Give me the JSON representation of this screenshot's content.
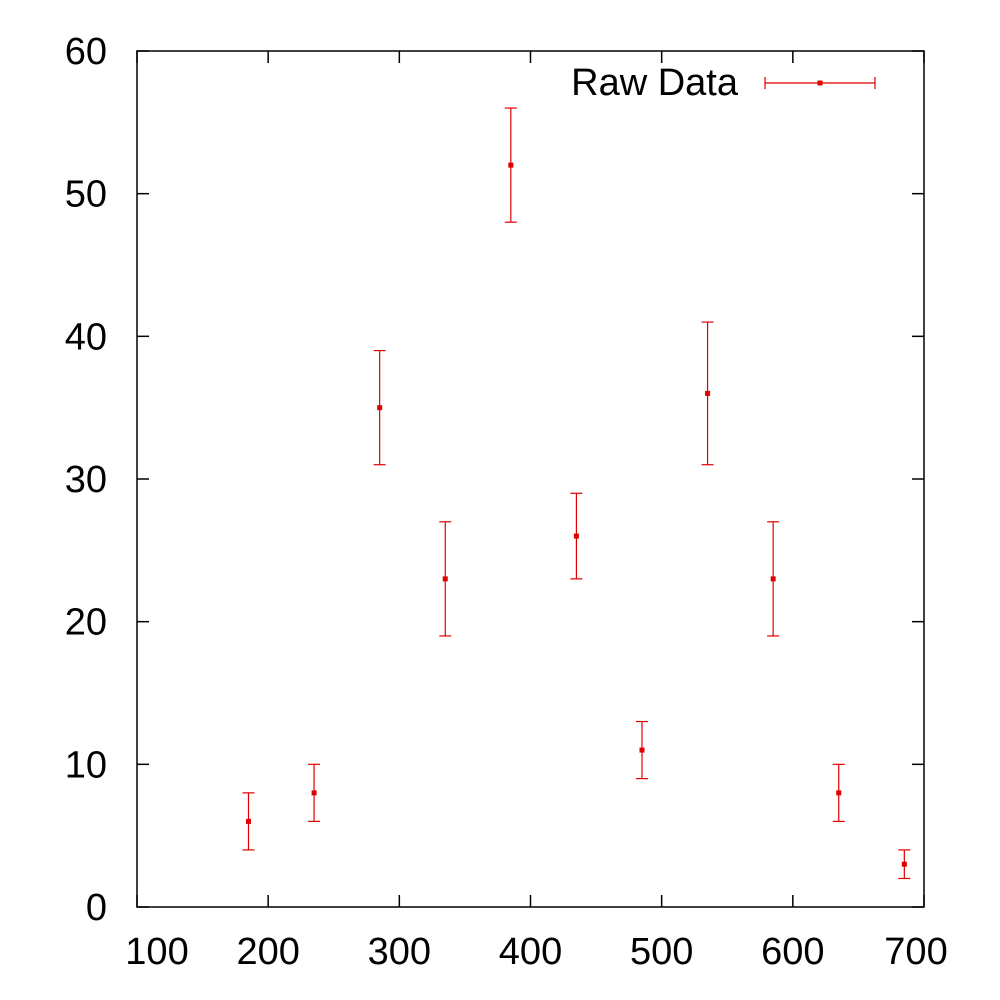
{
  "chart_data": {
    "type": "scatter",
    "title": "",
    "xlabel": "",
    "ylabel": "",
    "xlim": [
      100,
      700
    ],
    "ylim": [
      0,
      60
    ],
    "x_ticks": [
      100,
      200,
      300,
      400,
      500,
      600,
      700
    ],
    "y_ticks": [
      0,
      10,
      20,
      30,
      40,
      50,
      60
    ],
    "x_tick_labels": [
      "100",
      "200",
      "300",
      "400",
      "500",
      "600",
      "700"
    ],
    "y_tick_labels": [
      "0",
      "10",
      "20",
      "30",
      "40",
      "50",
      "60"
    ],
    "grid": false,
    "legend_position": "top-right",
    "series": [
      {
        "name": "Raw Data",
        "color": "#e00000",
        "style": "points with y error bars",
        "points": [
          {
            "x": 185,
            "y": 6,
            "ylow": 4,
            "yhigh": 8
          },
          {
            "x": 235,
            "y": 8,
            "ylow": 6,
            "yhigh": 10
          },
          {
            "x": 285,
            "y": 35,
            "ylow": 31,
            "yhigh": 39
          },
          {
            "x": 335,
            "y": 23,
            "ylow": 19,
            "yhigh": 27
          },
          {
            "x": 385,
            "y": 52,
            "ylow": 48,
            "yhigh": 56
          },
          {
            "x": 435,
            "y": 26,
            "ylow": 23,
            "yhigh": 29
          },
          {
            "x": 485,
            "y": 11,
            "ylow": 9,
            "yhigh": 13
          },
          {
            "x": 535,
            "y": 36,
            "ylow": 31,
            "yhigh": 41
          },
          {
            "x": 585,
            "y": 23,
            "ylow": 19,
            "yhigh": 27
          },
          {
            "x": 635,
            "y": 8,
            "ylow": 6,
            "yhigh": 10
          },
          {
            "x": 685,
            "y": 3,
            "ylow": 2,
            "yhigh": 4
          }
        ]
      }
    ]
  }
}
